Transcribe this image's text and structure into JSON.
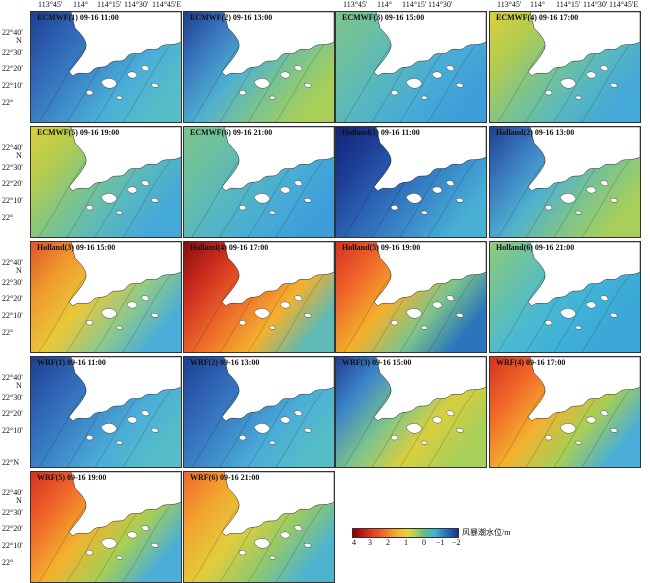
{
  "legend": {
    "unit": "风暴潮水位/m",
    "ticks": [
      "4",
      "3",
      "2",
      "1",
      "0",
      "−1",
      "−2"
    ]
  },
  "axes": {
    "x_ticks": [
      "113°45'",
      "114°",
      "114°15'",
      "114°30'",
      "114°45'E"
    ],
    "y_ticks_top": [
      "22°40'",
      "N",
      "22°30'",
      "22°20'",
      "22°10'",
      "22°"
    ],
    "y_ticks_bottom": [
      "22°N"
    ]
  },
  "panels": [
    {
      "title": "ECMWF(1) 09-16 11:00",
      "scheme": "blue"
    },
    {
      "title": "ECMWF(2) 09-16 13:00",
      "scheme": "blue-green"
    },
    {
      "title": "ECMWF(3) 09-16 15:00",
      "scheme": "green"
    },
    {
      "title": "ECMWF(4) 09-16 17:00",
      "scheme": "yellow-green"
    },
    {
      "title": "ECMWF(5) 09-16 19:00",
      "scheme": "yellow-green"
    },
    {
      "title": "ECMWF(6) 09-16 21:00",
      "scheme": "green"
    },
    {
      "title": "Holland(1) 09-16 11:00",
      "scheme": "deep-blue"
    },
    {
      "title": "Holland(2) 09-16 13:00",
      "scheme": "blue-green"
    },
    {
      "title": "Holland(3) 09-16 15:00",
      "scheme": "orange"
    },
    {
      "title": "Holland(4) 09-16 17:00",
      "scheme": "red"
    },
    {
      "title": "Holland(5) 09-16 19:00",
      "scheme": "red-blue"
    },
    {
      "title": "Holland(6) 09-16 21:00",
      "scheme": "cyan"
    },
    {
      "title": "WRF(1) 09-16 11:00",
      "scheme": "blue"
    },
    {
      "title": "WRF(2) 09-16 13:00",
      "scheme": "blue"
    },
    {
      "title": "WRF(3) 09-16 15:00",
      "scheme": "blue-yellow"
    },
    {
      "title": "WRF(4) 09-16 17:00",
      "scheme": "red-green"
    },
    {
      "title": "WRF(5) 09-16 19:00",
      "scheme": "red-green"
    },
    {
      "title": "WRF(6) 09-16 21:00",
      "scheme": "orange-green"
    }
  ]
}
